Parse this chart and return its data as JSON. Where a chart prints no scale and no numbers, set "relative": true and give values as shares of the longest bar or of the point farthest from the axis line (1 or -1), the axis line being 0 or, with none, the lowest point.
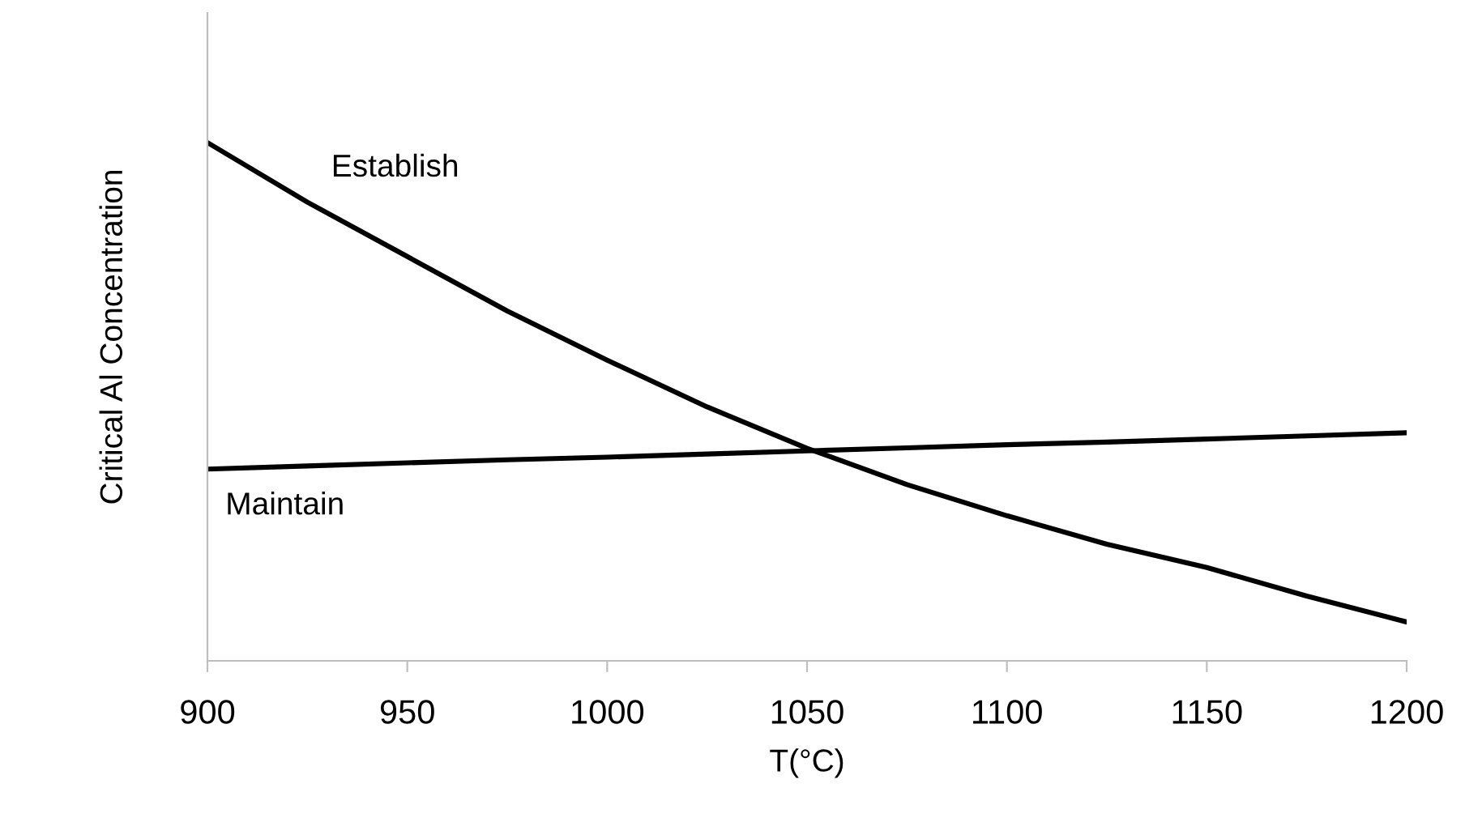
{
  "chart_data": {
    "type": "line",
    "xlabel": "T(°C)",
    "ylabel": "Critical Al Concentration",
    "relative": true,
    "x": [
      900,
      925,
      950,
      975,
      1000,
      1025,
      1050,
      1075,
      1100,
      1125,
      1150,
      1175,
      1200
    ],
    "xlim": [
      900,
      1200
    ],
    "xticks": [
      900,
      950,
      1000,
      1050,
      1100,
      1150,
      1200
    ],
    "grid": false,
    "legend": false,
    "marker": "none",
    "line_style": "solid",
    "series": [
      {
        "name": "Establish",
        "color": "#000000",
        "values": [
          1.0,
          0.885,
          0.78,
          0.675,
          0.58,
          0.49,
          0.41,
          0.34,
          0.28,
          0.225,
          0.18,
          0.125,
          0.075
        ]
      },
      {
        "name": "Maintain",
        "color": "#000000",
        "values": [
          0.37,
          0.376,
          0.382,
          0.388,
          0.393,
          0.399,
          0.405,
          0.411,
          0.417,
          0.422,
          0.428,
          0.434,
          0.44
        ]
      }
    ]
  }
}
